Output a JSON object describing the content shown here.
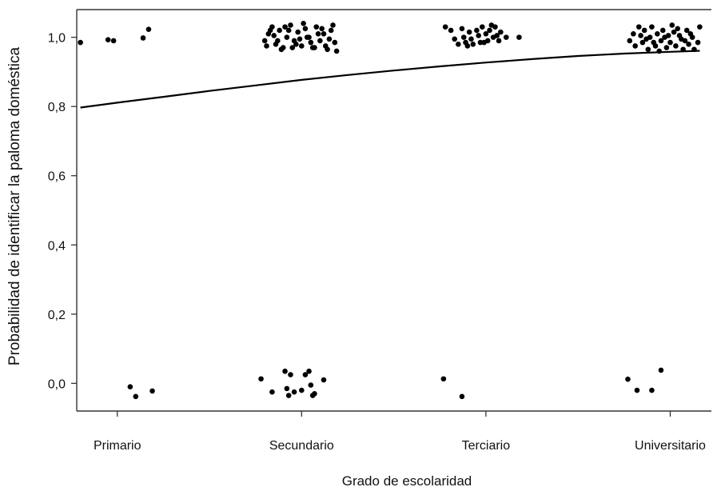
{
  "chart_data": {
    "type": "scatter",
    "title": "",
    "xlabel": "Grado de escolaridad",
    "ylabel": "Probabilidad de identificar la paloma doméstica",
    "categories": [
      "Primario",
      "Secundario",
      "Terciario",
      "Universitario"
    ],
    "y_tick_labels": [
      "0,0",
      "0,2",
      "0,4",
      "0,6",
      "0,8",
      "1,0"
    ],
    "y_ticks": [
      0.0,
      0.2,
      0.4,
      0.6,
      0.8,
      1.0
    ],
    "ylim": [
      -0.08,
      1.08
    ],
    "xlim": [
      0.78,
      4.18
    ],
    "grid": false,
    "legend": "none",
    "jitter_note_hidden": true,
    "series": [
      {
        "marks": "jittered-points",
        "points": [
          {
            "x": 0.8,
            "y": 0.985
          },
          {
            "x": 0.95,
            "y": 0.993
          },
          {
            "x": 0.98,
            "y": 0.99
          },
          {
            "x": 1.14,
            "y": 0.998
          },
          {
            "x": 1.17,
            "y": 1.023
          },
          {
            "x": 1.07,
            "y": -0.01
          },
          {
            "x": 1.1,
            "y": -0.038
          },
          {
            "x": 1.19,
            "y": -0.022
          },
          {
            "x": 1.8,
            "y": 0.99
          },
          {
            "x": 1.82,
            "y": 1.01
          },
          {
            "x": 1.84,
            "y": 1.03
          },
          {
            "x": 1.86,
            "y": 0.98
          },
          {
            "x": 1.88,
            "y": 1.02
          },
          {
            "x": 1.9,
            "y": 0.97
          },
          {
            "x": 1.92,
            "y": 1.0
          },
          {
            "x": 1.94,
            "y": 1.035
          },
          {
            "x": 1.96,
            "y": 0.99
          },
          {
            "x": 1.98,
            "y": 1.015
          },
          {
            "x": 2.0,
            "y": 0.975
          },
          {
            "x": 2.02,
            "y": 1.025
          },
          {
            "x": 2.04,
            "y": 1.0
          },
          {
            "x": 2.06,
            "y": 0.97
          },
          {
            "x": 2.08,
            "y": 1.03
          },
          {
            "x": 2.1,
            "y": 0.99
          },
          {
            "x": 2.12,
            "y": 1.01
          },
          {
            "x": 2.14,
            "y": 0.965
          },
          {
            "x": 2.16,
            "y": 1.02
          },
          {
            "x": 2.18,
            "y": 0.985
          },
          {
            "x": 1.81,
            "y": 0.975
          },
          {
            "x": 1.85,
            "y": 1.005
          },
          {
            "x": 1.89,
            "y": 0.965
          },
          {
            "x": 1.93,
            "y": 1.02
          },
          {
            "x": 1.97,
            "y": 0.98
          },
          {
            "x": 2.01,
            "y": 1.04
          },
          {
            "x": 2.05,
            "y": 0.985
          },
          {
            "x": 2.09,
            "y": 1.01
          },
          {
            "x": 2.13,
            "y": 0.975
          },
          {
            "x": 2.17,
            "y": 1.035
          },
          {
            "x": 2.19,
            "y": 0.96
          },
          {
            "x": 1.87,
            "y": 0.99
          },
          {
            "x": 1.83,
            "y": 1.02
          },
          {
            "x": 1.95,
            "y": 0.97
          },
          {
            "x": 2.03,
            "y": 1.0
          },
          {
            "x": 2.11,
            "y": 1.025
          },
          {
            "x": 2.15,
            "y": 0.995
          },
          {
            "x": 1.91,
            "y": 1.03
          },
          {
            "x": 1.99,
            "y": 0.995
          },
          {
            "x": 2.07,
            "y": 0.97
          },
          {
            "x": 1.78,
            "y": 0.013
          },
          {
            "x": 1.84,
            "y": -0.025
          },
          {
            "x": 1.91,
            "y": 0.035
          },
          {
            "x": 1.92,
            "y": -0.015
          },
          {
            "x": 1.93,
            "y": -0.035
          },
          {
            "x": 1.94,
            "y": 0.025
          },
          {
            "x": 1.96,
            "y": -0.025
          },
          {
            "x": 2.0,
            "y": -0.02
          },
          {
            "x": 2.02,
            "y": 0.025
          },
          {
            "x": 2.04,
            "y": 0.035
          },
          {
            "x": 2.05,
            "y": -0.005
          },
          {
            "x": 2.06,
            "y": -0.035
          },
          {
            "x": 2.07,
            "y": -0.03
          },
          {
            "x": 2.12,
            "y": 0.01
          },
          {
            "x": 2.78,
            "y": 1.03
          },
          {
            "x": 2.81,
            "y": 1.02
          },
          {
            "x": 2.83,
            "y": 0.995
          },
          {
            "x": 2.85,
            "y": 0.98
          },
          {
            "x": 2.87,
            "y": 1.025
          },
          {
            "x": 2.88,
            "y": 1.0
          },
          {
            "x": 2.89,
            "y": 0.985
          },
          {
            "x": 2.91,
            "y": 1.015
          },
          {
            "x": 2.92,
            "y": 0.995
          },
          {
            "x": 2.93,
            "y": 0.98
          },
          {
            "x": 2.95,
            "y": 1.02
          },
          {
            "x": 2.96,
            "y": 1.005
          },
          {
            "x": 2.97,
            "y": 0.985
          },
          {
            "x": 2.98,
            "y": 1.03
          },
          {
            "x": 3.0,
            "y": 1.01
          },
          {
            "x": 3.01,
            "y": 0.99
          },
          {
            "x": 3.02,
            "y": 1.02
          },
          {
            "x": 3.04,
            "y": 1.0
          },
          {
            "x": 3.05,
            "y": 1.03
          },
          {
            "x": 3.07,
            "y": 0.99
          },
          {
            "x": 3.08,
            "y": 1.015
          },
          {
            "x": 3.11,
            "y": 1.0
          },
          {
            "x": 2.9,
            "y": 0.975
          },
          {
            "x": 2.99,
            "y": 0.985
          },
          {
            "x": 3.03,
            "y": 1.035
          },
          {
            "x": 3.06,
            "y": 1.005
          },
          {
            "x": 3.18,
            "y": 1.0
          },
          {
            "x": 2.77,
            "y": 0.013
          },
          {
            "x": 2.87,
            "y": -0.038
          },
          {
            "x": 3.78,
            "y": 0.99
          },
          {
            "x": 3.8,
            "y": 1.01
          },
          {
            "x": 3.81,
            "y": 0.975
          },
          {
            "x": 3.83,
            "y": 1.03
          },
          {
            "x": 3.84,
            "y": 1.005
          },
          {
            "x": 3.85,
            "y": 0.985
          },
          {
            "x": 3.86,
            "y": 1.02
          },
          {
            "x": 3.88,
            "y": 0.965
          },
          {
            "x": 3.89,
            "y": 1.0
          },
          {
            "x": 3.9,
            "y": 1.03
          },
          {
            "x": 3.92,
            "y": 0.975
          },
          {
            "x": 3.93,
            "y": 1.01
          },
          {
            "x": 3.95,
            "y": 0.99
          },
          {
            "x": 3.96,
            "y": 1.02
          },
          {
            "x": 3.98,
            "y": 0.97
          },
          {
            "x": 3.99,
            "y": 1.005
          },
          {
            "x": 4.0,
            "y": 0.985
          },
          {
            "x": 4.02,
            "y": 1.015
          },
          {
            "x": 4.03,
            "y": 0.975
          },
          {
            "x": 4.04,
            "y": 1.025
          },
          {
            "x": 4.06,
            "y": 0.995
          },
          {
            "x": 4.07,
            "y": 0.965
          },
          {
            "x": 4.09,
            "y": 1.02
          },
          {
            "x": 4.1,
            "y": 0.98
          },
          {
            "x": 4.11,
            "y": 1.01
          },
          {
            "x": 4.13,
            "y": 0.965
          },
          {
            "x": 4.15,
            "y": 0.985
          },
          {
            "x": 4.16,
            "y": 1.03
          },
          {
            "x": 3.87,
            "y": 0.995
          },
          {
            "x": 3.91,
            "y": 0.985
          },
          {
            "x": 3.97,
            "y": 1.0
          },
          {
            "x": 4.01,
            "y": 1.035
          },
          {
            "x": 4.05,
            "y": 1.005
          },
          {
            "x": 4.08,
            "y": 0.99
          },
          {
            "x": 4.12,
            "y": 1.0
          },
          {
            "x": 3.94,
            "y": 0.96
          },
          {
            "x": 3.77,
            "y": 0.012
          },
          {
            "x": 3.82,
            "y": -0.02
          },
          {
            "x": 3.9,
            "y": -0.02
          },
          {
            "x": 3.95,
            "y": 0.038
          }
        ]
      },
      {
        "marks": "fitted-curve",
        "points": [
          {
            "x": 0.8,
            "y": 0.797
          },
          {
            "x": 1.0,
            "y": 0.811
          },
          {
            "x": 1.25,
            "y": 0.828
          },
          {
            "x": 1.5,
            "y": 0.845
          },
          {
            "x": 1.75,
            "y": 0.861
          },
          {
            "x": 2.0,
            "y": 0.877
          },
          {
            "x": 2.25,
            "y": 0.891
          },
          {
            "x": 2.5,
            "y": 0.904
          },
          {
            "x": 2.75,
            "y": 0.916
          },
          {
            "x": 3.0,
            "y": 0.927
          },
          {
            "x": 3.25,
            "y": 0.937
          },
          {
            "x": 3.5,
            "y": 0.946
          },
          {
            "x": 3.75,
            "y": 0.953
          },
          {
            "x": 4.0,
            "y": 0.958
          },
          {
            "x": 4.16,
            "y": 0.961
          }
        ]
      }
    ]
  }
}
